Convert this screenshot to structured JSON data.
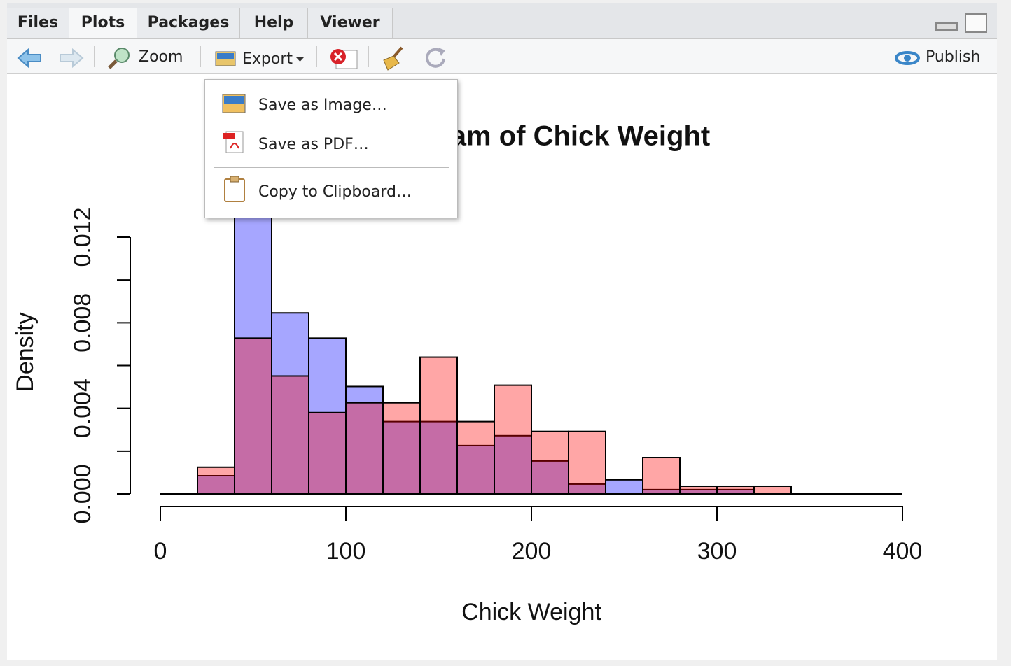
{
  "tabs": [
    "Files",
    "Plots",
    "Packages",
    "Help",
    "Viewer"
  ],
  "toolbar": {
    "zoom": "Zoom",
    "export": "Export",
    "publish": "Publish"
  },
  "export_menu": [
    "Save as Image…",
    "Save as PDF…",
    "Copy to Clipboard…"
  ],
  "chart_data": {
    "type": "histogram",
    "title": "Histogram of Chick Weight",
    "x_label": "Chick Weight",
    "y_label": "Density",
    "bins": [
      20,
      40,
      60,
      80,
      100,
      120,
      140,
      160,
      180,
      200,
      220,
      240,
      260,
      280,
      300,
      320,
      340
    ],
    "series": [
      {
        "color": "rgba(0,0,255,0.35)",
        "values": [
          0.00085,
          0.0135,
          0.00846,
          0.00728,
          0.00502,
          0.00338,
          0.00338,
          0.00226,
          0.00272,
          0.00154,
          0.00046,
          0.00066,
          0.0002,
          0.0002,
          0.0002,
          0
        ]
      },
      {
        "color": "rgba(255,0,0,0.35)",
        "values": [
          0.00125,
          0.00728,
          0.00551,
          0.0038,
          0.00426,
          0.00426,
          0.00639,
          0.00338,
          0.00508,
          0.00292,
          0.00292,
          0,
          0.0017,
          0.00036,
          0.00036,
          0.00036
        ]
      }
    ],
    "xlim": [
      0,
      400
    ],
    "xticks": [
      0,
      100,
      200,
      300,
      400
    ],
    "ylim": [
      0,
      0.012
    ],
    "yticks": [
      {
        "value": 0,
        "label": "0.000"
      },
      {
        "value": 0.004,
        "label": "0.004"
      },
      {
        "value": 0.008,
        "label": "0.008"
      },
      {
        "value": 0.012,
        "label": "0.012"
      }
    ],
    "yminor_ticks": [
      0.002,
      0.006,
      0.01
    ]
  }
}
